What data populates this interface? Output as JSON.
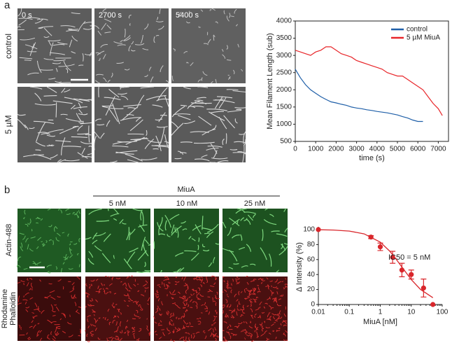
{
  "panel_a": {
    "label": "a",
    "time_labels": [
      "0 s",
      "2700 s",
      "5400 s"
    ],
    "row_labels": [
      "control",
      "5 µM"
    ]
  },
  "panel_b": {
    "label": "b",
    "header": "MiuA",
    "concentrations": [
      "5 nM",
      "10 nM",
      "25 nM"
    ],
    "row_labels": [
      [
        "Actin-488"
      ],
      [
        "Rhodamine",
        "Phalloidin"
      ]
    ]
  },
  "chart_data": [
    {
      "type": "line",
      "y_label": "Mean Filament Length (sub)",
      "x_label": "time (s)",
      "x": [
        0,
        250,
        500,
        750,
        1000,
        1250,
        1500,
        1750,
        2000,
        2250,
        2500,
        2750,
        3000,
        3250,
        3500,
        3750,
        4000,
        4250,
        4500,
        4750,
        5000,
        5250,
        5500,
        5750,
        6000,
        6250,
        6500,
        6750,
        7000,
        7200
      ],
      "series": [
        {
          "name": "control",
          "color": "#1f5fa8",
          "values": [
            2600,
            2350,
            2150,
            2000,
            1900,
            1800,
            1720,
            1650,
            1620,
            1580,
            1550,
            1500,
            1470,
            1450,
            1420,
            1400,
            1370,
            1350,
            1330,
            1300,
            1270,
            1220,
            1180,
            1120,
            1080,
            1080,
            null,
            null,
            null,
            null
          ]
        },
        {
          "name": "5 µM MiuA",
          "color": "#e8262a",
          "values": [
            3150,
            3100,
            3050,
            3000,
            3100,
            3150,
            3250,
            3250,
            3150,
            3050,
            3000,
            2950,
            2850,
            2800,
            2750,
            2700,
            2650,
            2600,
            2500,
            2450,
            2400,
            2400,
            2300,
            2200,
            2100,
            2000,
            1800,
            1600,
            1450,
            1250
          ]
        }
      ],
      "xlim": [
        0,
        7500
      ],
      "xticks": [
        0,
        1000,
        2000,
        3000,
        4000,
        5000,
        6000,
        7000
      ],
      "ylim": [
        500,
        4000
      ],
      "yticks": [
        500,
        1000,
        1500,
        2000,
        2500,
        3000,
        3500,
        4000
      ],
      "legend": "upper right"
    },
    {
      "type": "scatter",
      "y_label": "Δ Intensity (%)",
      "x_label": "MiuA [nM]",
      "annotation": "IC50 = 5 nM",
      "x_log": true,
      "points": {
        "color": "#d9262b",
        "x": [
          0.01,
          0.5,
          1,
          2.5,
          5,
          10,
          25,
          50
        ],
        "values": [
          100,
          90,
          77,
          63,
          46,
          40,
          22,
          0
        ],
        "errors": [
          0,
          2,
          5,
          8,
          9,
          6,
          12,
          0
        ]
      },
      "fit": {
        "color": "#d9262b",
        "x": [
          0.01,
          0.03,
          0.1,
          0.3,
          1,
          2,
          3,
          5,
          10,
          20,
          50
        ],
        "values": [
          99.8,
          99.4,
          98,
          94.3,
          83.3,
          71.4,
          62.5,
          50,
          33.3,
          20,
          9.1
        ]
      },
      "xlim": [
        0.01,
        100
      ],
      "xticks": [
        0.01,
        0.1,
        1,
        10,
        100
      ],
      "ylim": [
        0,
        100
      ],
      "yticks": [
        0,
        20,
        40,
        60,
        80,
        100
      ]
    }
  ]
}
